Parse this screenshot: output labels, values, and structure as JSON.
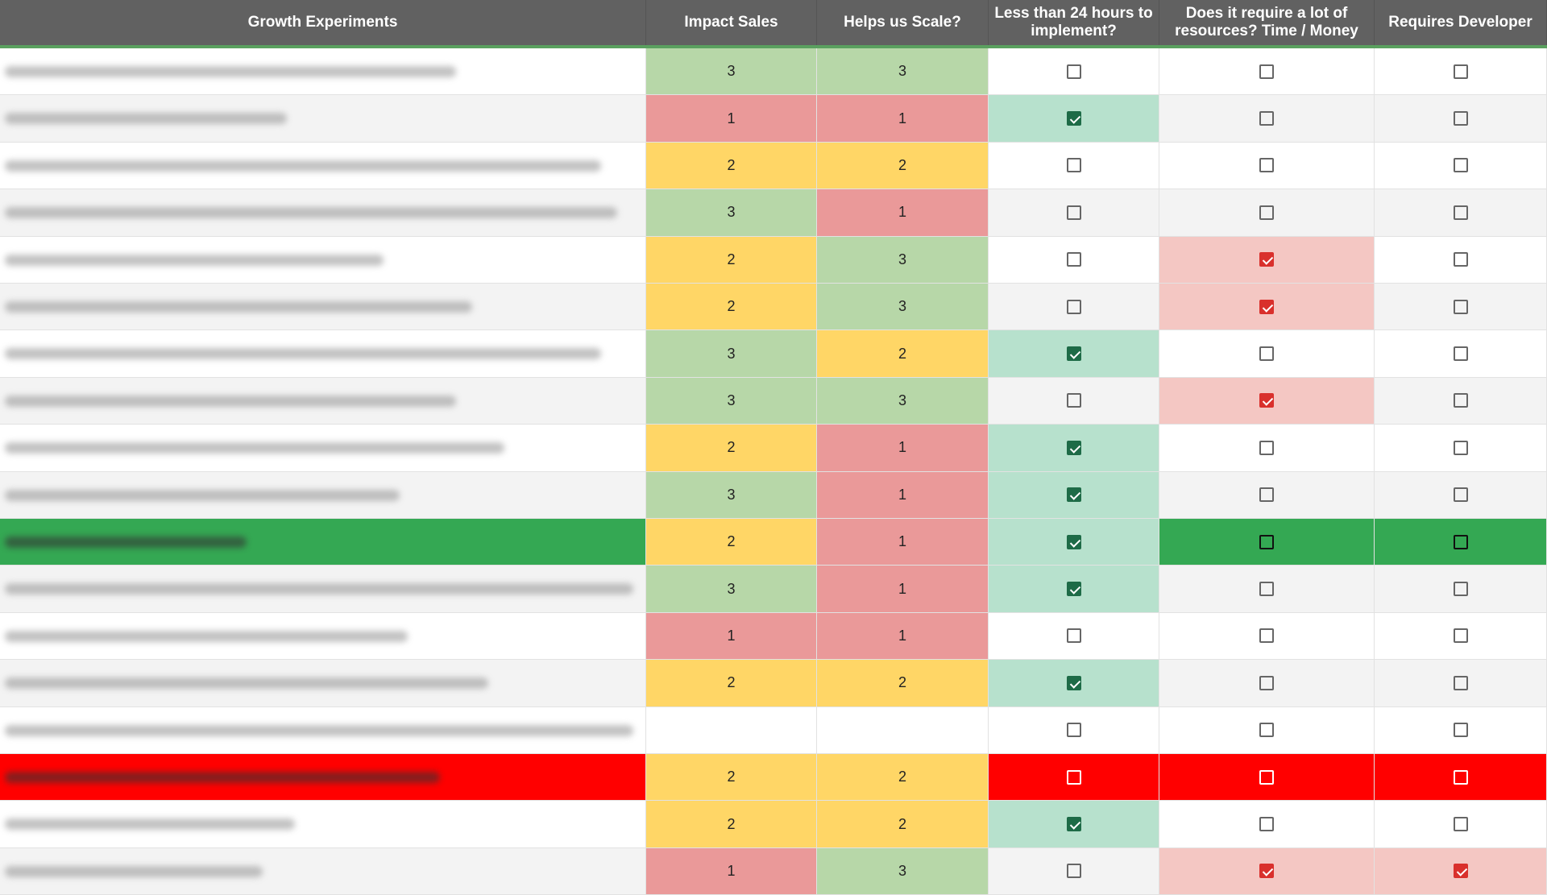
{
  "header": {
    "columns": [
      "Growth Experiments",
      "Impact Sales",
      "Helps us Scale?",
      "Less than 24 hours to implement?",
      "Does it require a lot of resources? Time / Money",
      "Requires Developer"
    ]
  },
  "settings": {
    "score_colors": {
      "1": "#ea9999",
      "2": "#ffd666",
      "3": "#b7d7a8"
    },
    "check_cell_colors": [
      "#b7e1cd",
      "#f4c7c3",
      "#f4c7c3"
    ],
    "check_box_colors": [
      "#1e6b47",
      "#d9302c",
      "#d9302c"
    ]
  },
  "rows": [
    {
      "impact": 3,
      "scale": 3,
      "checks": [
        false,
        false,
        false
      ],
      "highlight": null
    },
    {
      "impact": 1,
      "scale": 1,
      "checks": [
        true,
        false,
        false
      ],
      "highlight": null
    },
    {
      "impact": 2,
      "scale": 2,
      "checks": [
        false,
        false,
        false
      ],
      "highlight": null
    },
    {
      "impact": 3,
      "scale": 1,
      "checks": [
        false,
        false,
        false
      ],
      "highlight": null
    },
    {
      "impact": 2,
      "scale": 3,
      "checks": [
        false,
        true,
        false
      ],
      "highlight": null
    },
    {
      "impact": 2,
      "scale": 3,
      "checks": [
        false,
        true,
        false
      ],
      "highlight": null
    },
    {
      "impact": 3,
      "scale": 2,
      "checks": [
        true,
        false,
        false
      ],
      "highlight": null
    },
    {
      "impact": 3,
      "scale": 3,
      "checks": [
        false,
        true,
        false
      ],
      "highlight": null
    },
    {
      "impact": 2,
      "scale": 1,
      "checks": [
        true,
        false,
        false
      ],
      "highlight": null
    },
    {
      "impact": 3,
      "scale": 1,
      "checks": [
        true,
        false,
        false
      ],
      "highlight": null
    },
    {
      "impact": 2,
      "scale": 1,
      "checks": [
        true,
        false,
        false
      ],
      "highlight": "#34a853"
    },
    {
      "impact": 3,
      "scale": 1,
      "checks": [
        true,
        false,
        false
      ],
      "highlight": null
    },
    {
      "impact": 1,
      "scale": 1,
      "checks": [
        false,
        false,
        false
      ],
      "highlight": null
    },
    {
      "impact": 2,
      "scale": 2,
      "checks": [
        true,
        false,
        false
      ],
      "highlight": null
    },
    {
      "impact": null,
      "scale": null,
      "checks": [
        false,
        false,
        false
      ],
      "highlight": null
    },
    {
      "impact": 2,
      "scale": 2,
      "checks": [
        false,
        false,
        false
      ],
      "highlight": "#ff0000"
    },
    {
      "impact": 2,
      "scale": 2,
      "checks": [
        true,
        false,
        false
      ],
      "highlight": null
    },
    {
      "impact": 1,
      "scale": 3,
      "checks": [
        false,
        true,
        true
      ],
      "highlight": null
    }
  ]
}
